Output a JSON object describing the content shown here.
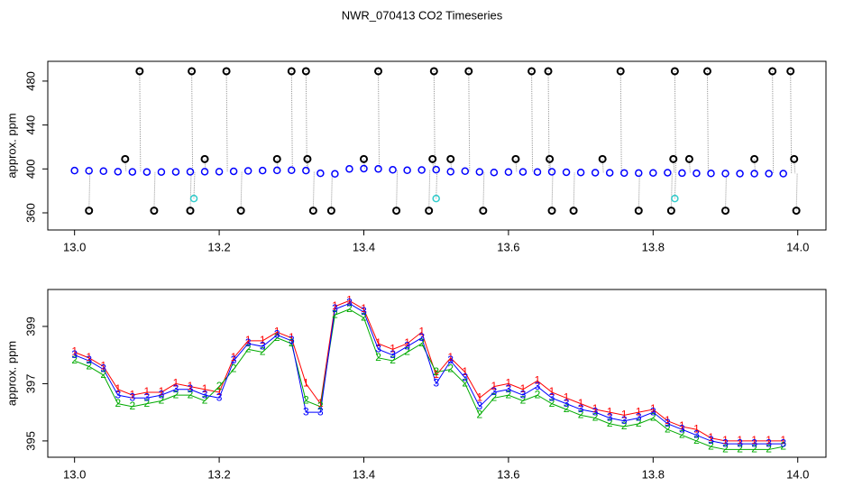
{
  "chart_data": [
    {
      "type": "scatter",
      "title": "NWR_070413  CO2 Timeseries",
      "ylabel": "approx. ppm",
      "xlim": [
        12.963,
        14.039
      ],
      "ylim": [
        344.4,
        498
      ],
      "xticks": [
        {
          "value": 13.0,
          "label": "13.0"
        },
        13.2,
        13.4,
        13.6,
        13.8,
        {
          "value": 14.0,
          "label": "14.0"
        }
      ],
      "yticks": [
        360,
        400,
        440,
        480
      ],
      "drop_lines": true,
      "drop_color": "#999999",
      "series": [
        {
          "color": "#0000ff",
          "marker_size": 3.5,
          "x": [
            13.0,
            13.02,
            13.04,
            13.06,
            13.08,
            13.1,
            13.12,
            13.14,
            13.16,
            13.18,
            13.2,
            13.22,
            13.24,
            13.26,
            13.28,
            13.3,
            13.32,
            13.34,
            13.36,
            13.38,
            13.4,
            13.42,
            13.44,
            13.46,
            13.48,
            13.5,
            13.52,
            13.54,
            13.56,
            13.58,
            13.6,
            13.62,
            13.64,
            13.66,
            13.68,
            13.7,
            13.72,
            13.74,
            13.76,
            13.78,
            13.8,
            13.82,
            13.84,
            13.86,
            13.88,
            13.9,
            13.92,
            13.94,
            13.96,
            13.98
          ],
          "values": [
            398.5,
            398.3,
            398.0,
            397.5,
            397.3,
            397.2,
            397.2,
            397.3,
            397.4,
            397.5,
            397.5,
            397.8,
            398.2,
            398.5,
            398.7,
            398.8,
            398.5,
            396.0,
            395.5,
            400.0,
            400.3,
            400.0,
            399.2,
            398.8,
            399.0,
            399.3,
            397.5,
            398.0,
            397.3,
            396.8,
            397.2,
            397.3,
            397.2,
            397.4,
            397.0,
            396.8,
            396.6,
            396.5,
            396.3,
            396.2,
            396.4,
            396.6,
            396.2,
            396.0,
            395.9,
            395.8,
            395.7,
            395.7,
            395.7,
            395.7
          ]
        },
        {
          "color": "#000000",
          "marker_size": 3.5,
          "x": [
            13.02,
            13.07,
            13.09,
            13.11,
            13.16,
            13.162,
            13.18,
            13.21,
            13.23,
            13.28,
            13.3,
            13.32,
            13.322,
            13.33,
            13.355,
            13.4,
            13.42,
            13.445,
            13.49,
            13.495,
            13.497,
            13.52,
            13.545,
            13.565,
            13.61,
            13.632,
            13.655,
            13.657,
            13.66,
            13.69,
            13.73,
            13.755,
            13.78,
            13.825,
            13.828,
            13.83,
            13.85,
            13.875,
            13.9,
            13.94,
            13.965,
            13.99,
            13.995,
            13.998
          ],
          "values": [
            362,
            409,
            489,
            362,
            362,
            489,
            409,
            489,
            362,
            409,
            489,
            489,
            409,
            362,
            362,
            409,
            489,
            362,
            362,
            409,
            489,
            409,
            489,
            362,
            409,
            489,
            489,
            409,
            362,
            362,
            409,
            489,
            362,
            362,
            409,
            489,
            409,
            489,
            362,
            409,
            489,
            489,
            409,
            362
          ]
        },
        {
          "color": "#33cccc",
          "marker_size": 3.5,
          "x": [
            13.165,
            13.5,
            13.83
          ],
          "values": [
            373,
            373,
            373
          ]
        }
      ]
    },
    {
      "type": "line",
      "ylabel": "approx. ppm",
      "xlim": [
        12.963,
        14.039
      ],
      "ylim": [
        394.43,
        400.29
      ],
      "xticks": [
        {
          "value": 13.0,
          "label": "13.0"
        },
        13.2,
        13.4,
        13.6,
        13.8,
        {
          "value": 14.0,
          "label": "14.0"
        }
      ],
      "yticks": [
        395,
        397,
        399
      ],
      "x": [
        13.0,
        13.02,
        13.04,
        13.06,
        13.08,
        13.1,
        13.12,
        13.14,
        13.16,
        13.18,
        13.2,
        13.22,
        13.24,
        13.26,
        13.28,
        13.3,
        13.32,
        13.34,
        13.36,
        13.38,
        13.4,
        13.42,
        13.44,
        13.46,
        13.48,
        13.5,
        13.52,
        13.54,
        13.56,
        13.58,
        13.6,
        13.62,
        13.64,
        13.66,
        13.68,
        13.7,
        13.72,
        13.74,
        13.76,
        13.78,
        13.8,
        13.82,
        13.84,
        13.86,
        13.88,
        13.9,
        13.92,
        13.94,
        13.96,
        13.98
      ],
      "series": [
        {
          "marker": "1",
          "color": "#ff0000",
          "values": [
            398.1,
            397.9,
            397.6,
            396.8,
            396.6,
            396.7,
            396.7,
            397.0,
            396.9,
            396.8,
            396.7,
            397.9,
            398.5,
            398.5,
            398.8,
            398.6,
            397.0,
            396.3,
            399.7,
            399.9,
            399.6,
            398.4,
            398.2,
            398.4,
            398.8,
            397.3,
            397.9,
            397.4,
            396.5,
            396.9,
            397.0,
            396.8,
            397.1,
            396.7,
            396.5,
            396.3,
            396.1,
            396.0,
            395.9,
            396.0,
            396.1,
            395.7,
            395.5,
            395.4,
            395.1,
            395.0,
            395.0,
            395.0,
            395.0,
            395.0
          ]
        },
        {
          "marker": "2",
          "color": "#00aa00",
          "values": [
            397.8,
            397.6,
            397.3,
            396.3,
            396.2,
            396.3,
            396.4,
            396.6,
            396.6,
            396.4,
            396.9,
            397.5,
            398.2,
            398.1,
            398.6,
            398.4,
            396.4,
            396.2,
            399.4,
            399.6,
            399.3,
            397.9,
            397.8,
            398.1,
            398.4,
            397.4,
            397.5,
            397.0,
            395.9,
            396.5,
            396.6,
            396.4,
            396.6,
            396.3,
            396.1,
            395.9,
            395.8,
            395.6,
            395.5,
            395.6,
            395.8,
            395.4,
            395.2,
            395.0,
            394.8,
            394.7,
            394.7,
            394.7,
            394.7,
            394.8
          ]
        },
        {
          "marker": "3",
          "color": "#0000ff",
          "values": [
            398.0,
            397.8,
            397.5,
            396.6,
            396.5,
            396.5,
            396.6,
            396.8,
            396.8,
            396.6,
            396.5,
            397.8,
            398.4,
            398.3,
            398.7,
            398.5,
            396.0,
            396.0,
            399.6,
            399.8,
            399.5,
            398.2,
            398.0,
            398.3,
            398.6,
            397.0,
            397.8,
            397.2,
            396.2,
            396.7,
            396.8,
            396.6,
            396.9,
            396.5,
            396.3,
            396.1,
            396.0,
            395.8,
            395.7,
            395.8,
            396.0,
            395.6,
            395.4,
            395.2,
            395.0,
            394.9,
            394.9,
            394.9,
            394.9,
            394.9
          ]
        }
      ]
    }
  ]
}
